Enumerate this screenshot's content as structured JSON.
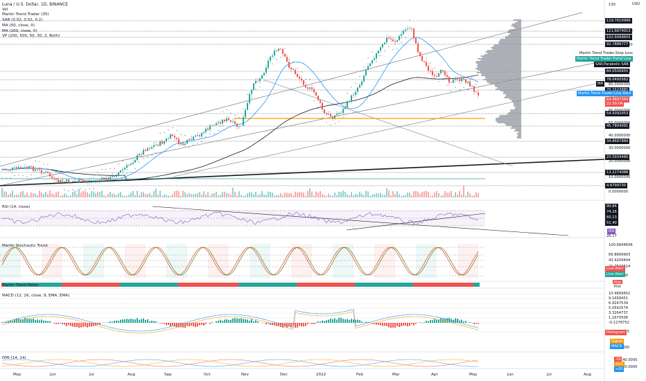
{
  "header": {
    "title": "Luna / U.S. Dollar, 1D, BINANCE",
    "indicators": [
      "Vol",
      "Martin Trend Trader (35)",
      "SAR (0.02, 0.02, 0.2)",
      "MA (50, close, 0)",
      "MA (200, close, 0)",
      "VP (200, 500, 50, 30, 2, Both)"
    ]
  },
  "currency": "USD",
  "price_axis": {
    "ticks": [
      "130",
      "120.0000000",
      "110.0000000",
      "100.0000000",
      "90.0000000",
      "80.0000000",
      "70.0000000",
      "60.0000000",
      "50.0000000",
      "40.0000000",
      "30.0000000",
      "20.0000000",
      "10.0000000",
      "0.0000000"
    ],
    "labels": [
      {
        "text": "119.7610996",
        "bg": "#131722"
      },
      {
        "text": "111.6674013",
        "bg": "#131722"
      },
      {
        "text": "102.6068605",
        "bg": "#131722"
      },
      {
        "text": "92.7886777",
        "bg": "#131722"
      },
      {
        "text": "84.0500655",
        "bg": "#131722"
      },
      {
        "text": "78.0400562",
        "bg": "#131722"
      },
      {
        "text": "70.1523885",
        "bg": "#131722"
      },
      {
        "text": "64.4897344",
        "bg": "#ef5350"
      },
      {
        "text": "22:59:04",
        "bg": "#ef5350"
      },
      {
        "text": "54.5092053",
        "bg": "#131722"
      },
      {
        "text": "45.7804091",
        "bg": "#131722"
      },
      {
        "text": "34.8687889",
        "bg": "#131722"
      },
      {
        "text": "23.5934480",
        "bg": "#131722"
      },
      {
        "text": "13.2274088",
        "bg": "#131722"
      },
      {
        "text": "4.6799730",
        "bg": "#131722"
      }
    ],
    "side_labels": [
      {
        "text": "Martin Trend Trader:Stop Loss",
        "bg": "#ffffff",
        "fg": "#131722"
      },
      {
        "text": "Martin Trend Trader:Trend Line",
        "bg": "#26a69a",
        "fg": "#ffffff"
      },
      {
        "text": "SAR:Parabolic SAR",
        "bg": "#131722",
        "fg": "#ffffff"
      },
      {
        "text": "MA",
        "bg": "#131722",
        "fg": "#ffffff"
      },
      {
        "text": "Martin Trend Trader:Live Alert",
        "bg": "#2196f3",
        "fg": "#ffffff"
      }
    ]
  },
  "rsi": {
    "title": "RSI (14, close)",
    "ticks": [
      "90.84",
      "74.26",
      "60.13",
      "51.40",
      "26.17"
    ],
    "label": "RSI"
  },
  "stoch": {
    "title": "Martin Stochastic Trend",
    "ticks": [
      "100.6844836",
      "69.8669903",
      "43.4204444",
      "21.7823614",
      "0.0000000"
    ],
    "labels": [
      "Live Alert",
      "Live Alert"
    ]
  },
  "trend_meter": {
    "title": "Martin Trend Meter",
    "labels": [
      "Plot",
      "Plot"
    ]
  },
  "macd": {
    "title": "MACD (12, 26, close, 9, EMA, EMA)",
    "ticks": [
      "10.4669652",
      "9.1658451",
      "6.9247539",
      "5.0542574",
      "3.3264737",
      "1.1670506",
      "-0.1278752",
      "-2.4302745",
      "-8.0000000"
    ],
    "labels": [
      "Histogram",
      "Signal",
      "MACD"
    ]
  },
  "dmi": {
    "title": "DMI (14, 14)",
    "ticks": [
      "40.0000",
      "20.0000"
    ],
    "labels": [
      "-DI",
      "ADX",
      "+DI"
    ]
  },
  "time_axis": [
    "May",
    "Jun",
    "Jul",
    "Aug",
    "Sep",
    "Oct",
    "Nov",
    "Dec",
    "2022",
    "Feb",
    "Mar",
    "Apr",
    "May",
    "Jun",
    "Jul",
    "Aug"
  ],
  "colors": {
    "up": "#26a69a",
    "down": "#ef5350",
    "ma50": "#2196f3",
    "ma200": "#131722",
    "vp": "#9598a1",
    "poc": "#f59f00"
  }
}
